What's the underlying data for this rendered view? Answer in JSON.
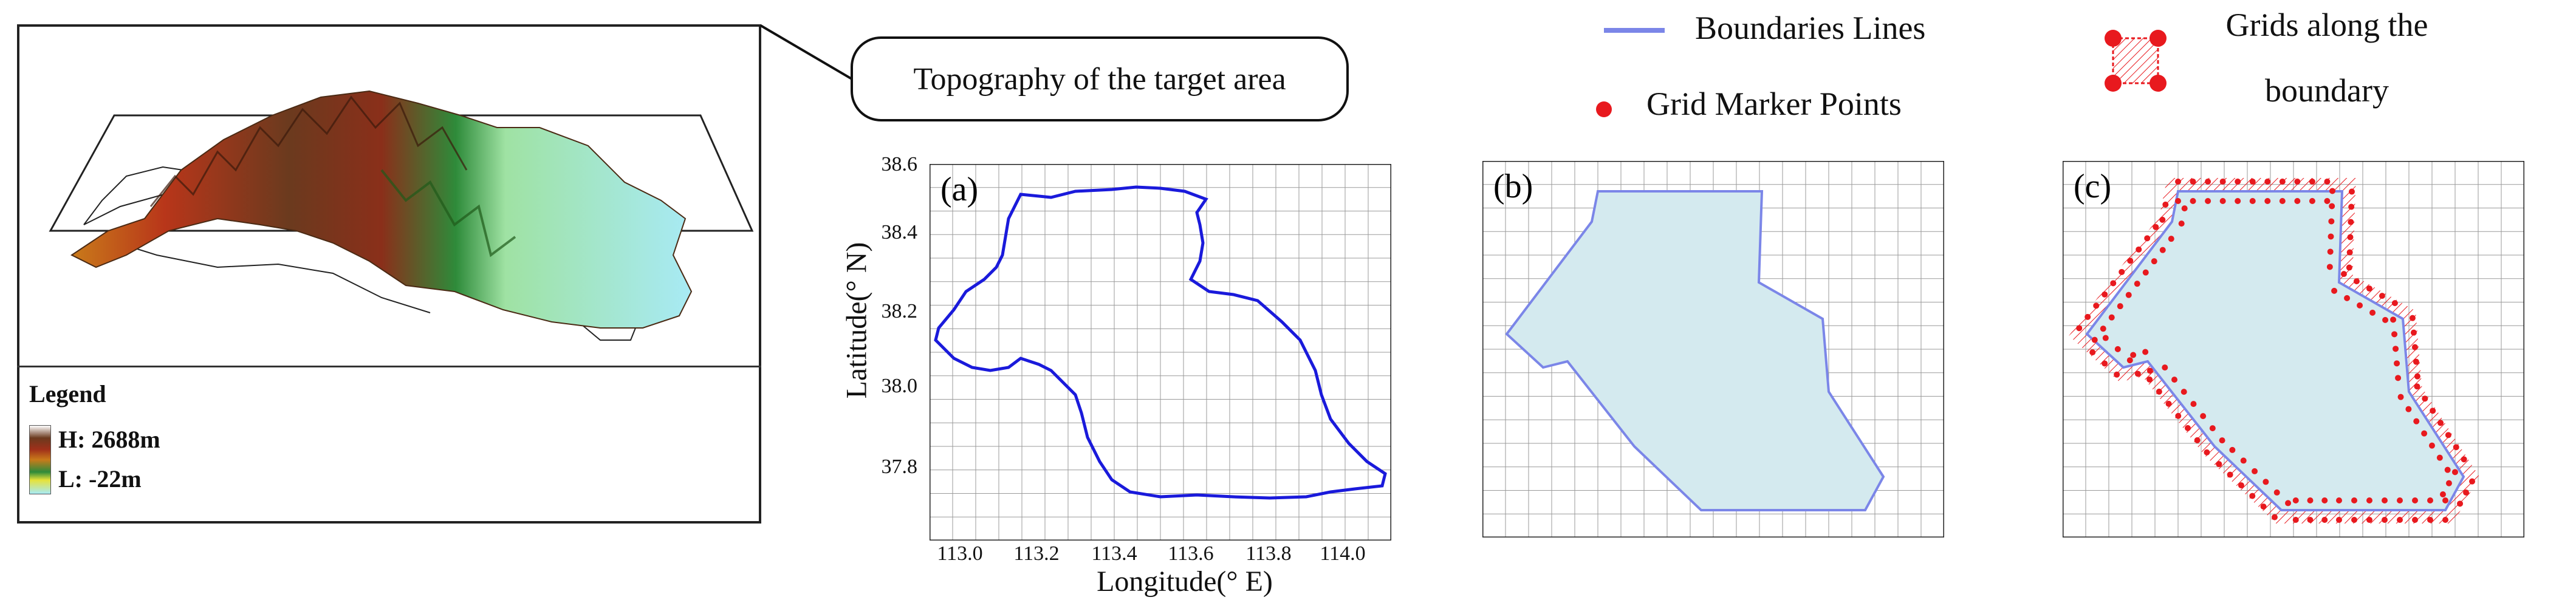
{
  "topography": {
    "callout": "Topography of the target area",
    "legend": {
      "title": "Legend",
      "high": "H: 2688m",
      "low": "L: -22m"
    }
  },
  "panels": {
    "a": {
      "tag": "(a)"
    },
    "b": {
      "tag": "(b)"
    },
    "c": {
      "tag": "(c)"
    }
  },
  "legend": {
    "boundary_lines": "Boundaries Lines",
    "grid_marker_points": "Grid Marker Points",
    "grids_along_line1": "Grids along the",
    "grids_along_line2": "boundary"
  },
  "colors": {
    "boundary_blue": "#1a1adb",
    "boundary_light": "#7b86e8",
    "fill_cyan": "#d4eaef",
    "marker_red": "#e8191e"
  },
  "chart_data": {
    "type": "line",
    "xlabel": "Longitude(° E)",
    "ylabel": "Latitude(° N)",
    "xlim": [
      112.88,
      114.06
    ],
    "ylim": [
      37.64,
      38.6
    ],
    "xticks": [
      "113.0",
      "113.2",
      "113.4",
      "113.6",
      "113.8",
      "114.0"
    ],
    "yticks": [
      "38.6",
      "38.4",
      "38.2",
      "38.0",
      "37.8"
    ],
    "grid": true
  }
}
